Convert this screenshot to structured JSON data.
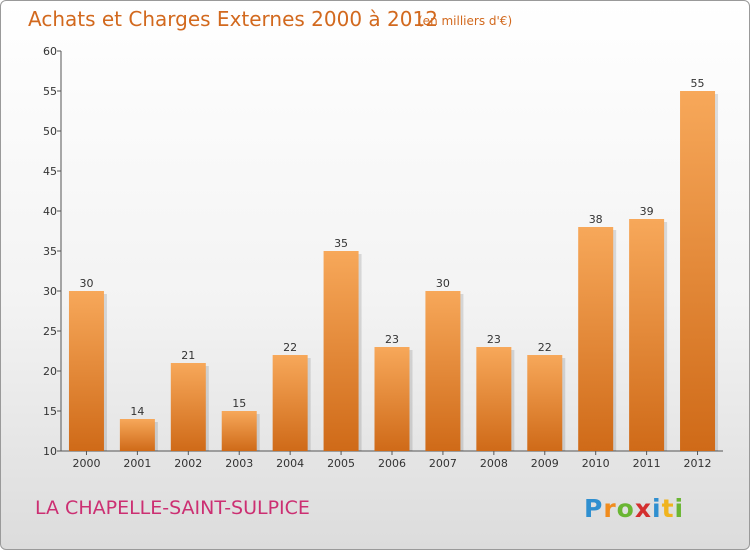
{
  "header": {
    "title": "Achats et Charges Externes 2000 à 2012",
    "subtitle": "(en milliers d'€)"
  },
  "footer": {
    "commune": "LA CHAPELLE-SAINT-SULPICE",
    "logo_text": "Proxiti"
  },
  "colors": {
    "bar_top": "#f7a85a",
    "bar_bottom": "#cf6a18",
    "title": "#d2691e",
    "commune": "#cc2f72"
  },
  "chart_data": {
    "type": "bar",
    "title": "Achats et Charges Externes 2000 à 2012",
    "subtitle": "(en milliers d'€)",
    "categories": [
      "2000",
      "2001",
      "2002",
      "2003",
      "2004",
      "2005",
      "2006",
      "2007",
      "2008",
      "2009",
      "2010",
      "2011",
      "2012"
    ],
    "values": [
      30,
      14,
      21,
      15,
      22,
      35,
      23,
      30,
      23,
      22,
      38,
      39,
      55
    ],
    "ylim": [
      10,
      60
    ],
    "yticks": [
      10,
      15,
      20,
      25,
      30,
      35,
      40,
      45,
      50,
      55,
      60
    ],
    "grid": false,
    "data_labels": true
  }
}
